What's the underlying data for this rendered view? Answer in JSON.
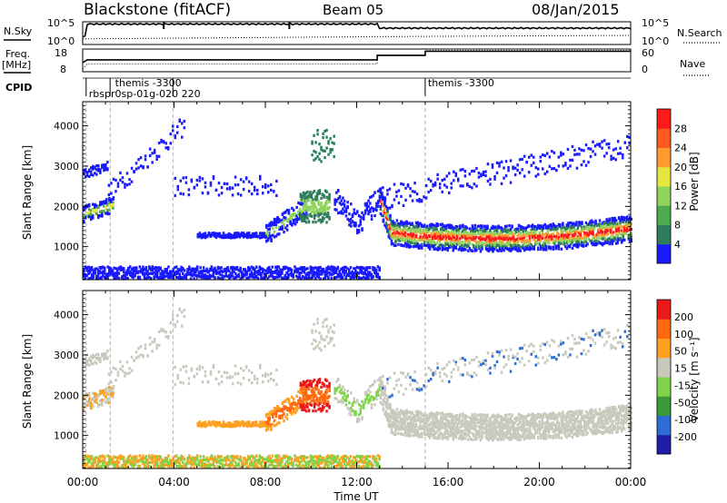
{
  "header": {
    "station": "Blackstone (fitACF)",
    "beam": "Beam 05",
    "date": "08/Jan/2015"
  },
  "sky_panel": {
    "left_label": "N.Sky",
    "right_label": "N.Search",
    "left_ticks": [
      "10^5",
      "10^0"
    ],
    "right_ticks": [
      "10^5",
      "10^0"
    ]
  },
  "freq_panel": {
    "left_label_1": "Freq.",
    "left_label_2": "[MHz]",
    "right_label": "Nave",
    "left_ticks": [
      "18",
      "8"
    ],
    "right_ticks": [
      "60",
      "0"
    ]
  },
  "cpid_panel": {
    "label": "CPID",
    "annotations": [
      {
        "text": "themis -3300",
        "time": 1.3
      },
      {
        "text": "rbspr0sp-01g-020 220",
        "time": 0.15
      },
      {
        "text": "themis -3300",
        "time": 15.0
      }
    ],
    "markers": [
      0.15,
      1.2,
      3.95,
      15.0
    ]
  },
  "power_panel": {
    "ylabel": "Slant Range [km]",
    "yticks": [
      "4000",
      "3000",
      "2000",
      "1000"
    ],
    "colorbar_label": "Power [dB]",
    "colorbar_ticks": [
      "28",
      "24",
      "20",
      "16",
      "12",
      "8",
      "4"
    ],
    "colors": [
      "#1a1aff",
      "#2e7d5b",
      "#4daa4d",
      "#8fd35a",
      "#e6e641",
      "#ff9a2e",
      "#ff5a1e",
      "#ff1a1a"
    ]
  },
  "velocity_panel": {
    "ylabel": "Slant Range [km]",
    "yticks": [
      "4000",
      "3000",
      "2000",
      "1000"
    ],
    "colorbar_label": "Velocity [m s⁻¹]",
    "colorbar_ticks": [
      "200",
      "100",
      "50",
      "15",
      "-15",
      "-50",
      "-100",
      "-200"
    ],
    "colors": [
      "#1e1ea8",
      "#2e6dd4",
      "#3a9a3a",
      "#7fd34a",
      "#c8c8bc",
      "#ffa021",
      "#ff6a10",
      "#e81a1a"
    ]
  },
  "xaxis": {
    "ticks": [
      "00:00",
      "04:00",
      "08:00",
      "12:00",
      "16:00",
      "20:00",
      "00:00"
    ],
    "label": "Time UT"
  },
  "chart_data": {
    "type": "heatmap",
    "title": "Blackstone (fitACF)   Beam 05   08/Jan/2015",
    "xlabel": "Time UT",
    "ylabel": "Slant Range [km]",
    "xlim": [
      0,
      24
    ],
    "ylim": [
      180,
      4600
    ],
    "series": [
      {
        "name": "Power [dB]",
        "clim": [
          0,
          30
        ]
      },
      {
        "name": "Velocity [m s^-1]",
        "clim": [
          -250,
          250
        ]
      }
    ],
    "noise_sky": [
      [
        0,
        0.35
      ],
      [
        0.2,
        0.9
      ],
      [
        13,
        0.93
      ],
      [
        13.4,
        0.72
      ],
      [
        24,
        0.7
      ]
    ],
    "noise_search": [
      [
        0,
        0.25
      ],
      [
        13.3,
        0.35
      ],
      [
        24,
        0.4
      ]
    ],
    "frequency_mhz": [
      [
        0,
        8
      ],
      [
        0.2,
        10.5
      ],
      [
        12.9,
        10.5
      ],
      [
        12.9,
        14.5
      ],
      [
        15,
        14.5
      ],
      [
        15,
        18
      ],
      [
        24,
        18
      ]
    ],
    "nave": [
      [
        0,
        8
      ],
      [
        0.2,
        22
      ],
      [
        12.9,
        22
      ],
      [
        12.9,
        45
      ],
      [
        15,
        45
      ],
      [
        15,
        60
      ],
      [
        24,
        60
      ]
    ]
  }
}
